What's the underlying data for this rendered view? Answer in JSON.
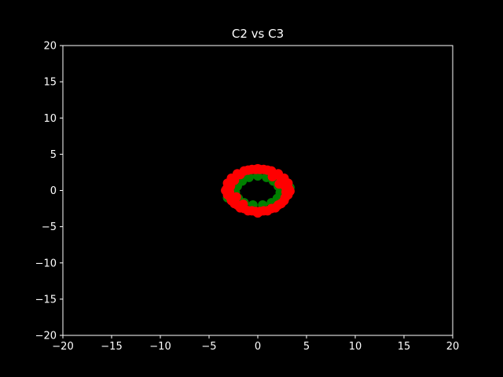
{
  "chart_data": {
    "type": "scatter",
    "title": "C2 vs C3",
    "xlabel": "",
    "ylabel": "",
    "xlim": [
      -20,
      20
    ],
    "ylim": [
      -20,
      20
    ],
    "xticks": [
      -20,
      -15,
      -10,
      -5,
      0,
      5,
      10,
      15,
      20
    ],
    "yticks": [
      -20,
      -15,
      -10,
      -5,
      0,
      5,
      10,
      15,
      20
    ],
    "xtick_labels": [
      "−20",
      "−15",
      "−10",
      "−5",
      "0",
      "5",
      "10",
      "15",
      "20"
    ],
    "ytick_labels": [
      "−20",
      "−15",
      "−10",
      "−5",
      "0",
      "5",
      "10",
      "15",
      "20"
    ],
    "grid": false,
    "background_color": "#000000",
    "axes_color": "#ffffff",
    "series": [
      {
        "color": "#008000",
        "points": [
          [
            0.0,
            2.0
          ],
          [
            0.9,
            1.8
          ],
          [
            1.6,
            1.3
          ],
          [
            2.1,
            0.6
          ],
          [
            2.3,
            -0.3
          ],
          [
            2.0,
            -1.1
          ],
          [
            1.4,
            -1.7
          ],
          [
            0.5,
            -2.0
          ],
          [
            -0.5,
            -2.0
          ],
          [
            -1.4,
            -1.7
          ],
          [
            -2.0,
            -1.1
          ],
          [
            -2.3,
            -0.3
          ],
          [
            -2.1,
            0.6
          ],
          [
            -1.6,
            1.3
          ],
          [
            -0.9,
            1.8
          ],
          [
            2.5,
            0.5
          ],
          [
            3.1,
            1.0
          ],
          [
            3.3,
            0.4
          ],
          [
            -3.1,
            -1.0
          ],
          [
            -2.6,
            -0.5
          ]
        ]
      },
      {
        "color": "#ff0000",
        "points": [
          [
            -1.0,
            2.8
          ],
          [
            -0.2,
            2.9
          ],
          [
            0.6,
            2.9
          ],
          [
            1.4,
            2.7
          ],
          [
            2.1,
            2.3
          ],
          [
            2.7,
            1.7
          ],
          [
            3.1,
            1.0
          ],
          [
            3.2,
            0.2
          ],
          [
            3.1,
            -0.6
          ],
          [
            2.7,
            -1.4
          ],
          [
            2.1,
            -2.0
          ],
          [
            1.4,
            -2.5
          ],
          [
            0.6,
            -2.8
          ],
          [
            -0.2,
            -2.9
          ],
          [
            -1.0,
            -2.8
          ],
          [
            -1.8,
            -2.4
          ],
          [
            -2.4,
            -1.8
          ],
          [
            -2.8,
            -1.0
          ],
          [
            -2.9,
            -0.2
          ],
          [
            -2.8,
            0.6
          ],
          [
            -2.4,
            1.4
          ],
          [
            -1.8,
            2.2
          ],
          [
            1.0,
            2.8
          ],
          [
            0.2,
            2.9
          ],
          [
            -0.6,
            2.9
          ],
          [
            -1.4,
            2.7
          ],
          [
            -2.1,
            2.3
          ],
          [
            -2.7,
            1.7
          ],
          [
            -3.1,
            1.0
          ],
          [
            -3.2,
            0.2
          ],
          [
            -3.1,
            -0.6
          ],
          [
            -2.7,
            -1.4
          ],
          [
            -2.1,
            -2.0
          ],
          [
            -1.4,
            -2.5
          ],
          [
            -0.6,
            -2.8
          ],
          [
            0.2,
            -2.9
          ],
          [
            1.0,
            -2.8
          ],
          [
            1.8,
            -2.4
          ],
          [
            2.4,
            -1.8
          ],
          [
            2.8,
            -1.0
          ],
          [
            2.9,
            -0.2
          ],
          [
            2.8,
            0.6
          ],
          [
            2.4,
            1.4
          ],
          [
            1.8,
            2.2
          ],
          [
            0.0,
            3.0
          ],
          [
            0.0,
            -3.1
          ],
          [
            3.3,
            -0.1
          ],
          [
            -3.3,
            0.0
          ],
          [
            2.2,
            0.9
          ],
          [
            -2.2,
            -0.9
          ],
          [
            1.5,
            1.9
          ],
          [
            -1.5,
            -1.9
          ]
        ]
      }
    ]
  }
}
